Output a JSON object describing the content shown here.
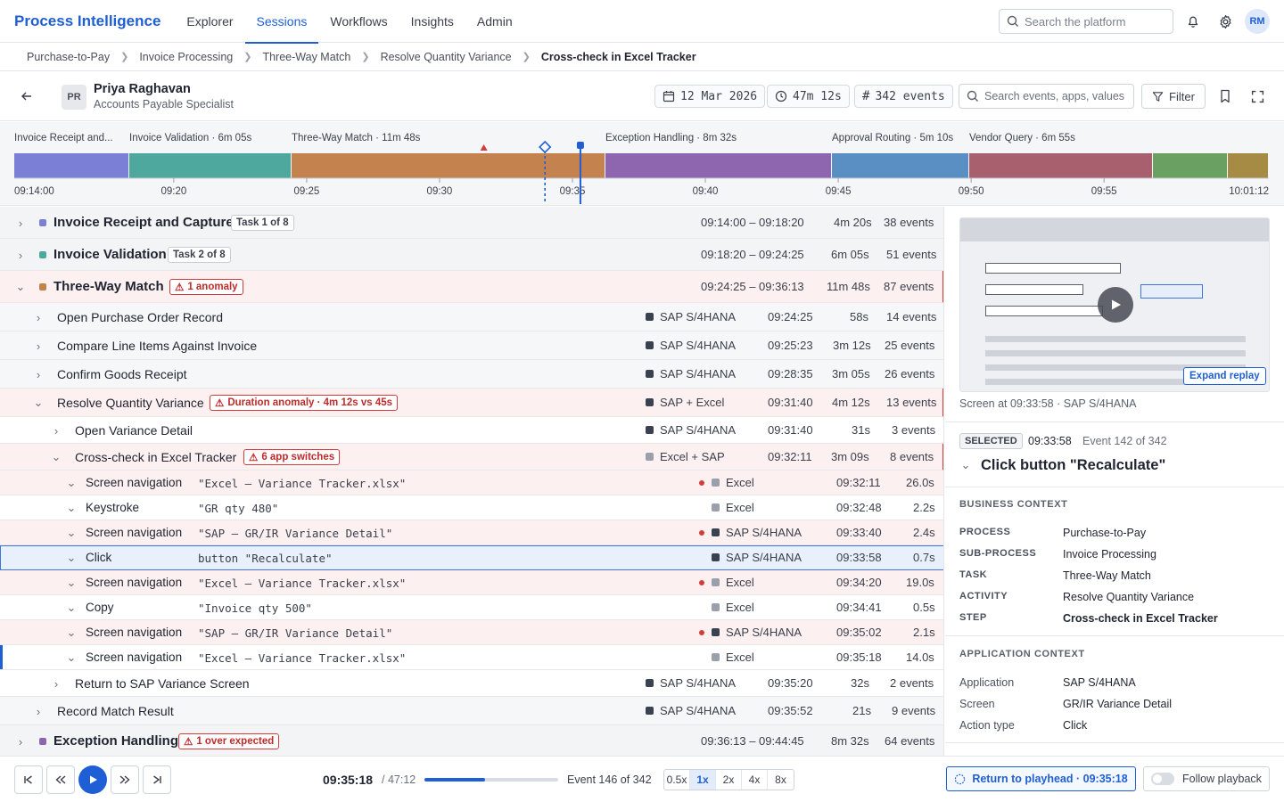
{
  "header": {
    "brand": "Process Intelligence",
    "tabs": [
      {
        "label": "Explorer"
      },
      {
        "label": "Sessions",
        "active": true
      },
      {
        "label": "Workflows"
      },
      {
        "label": "Insights"
      },
      {
        "label": "Admin"
      }
    ],
    "search_placeholder": "Search the platform",
    "avatar_initials": "RM",
    "icons": [
      "search-icon",
      "bell-icon",
      "gear-icon"
    ]
  },
  "breadcrumb": [
    "Purchase-to-Pay",
    "Invoice Processing",
    "Three-Way Match",
    "Resolve Quantity Variance",
    "Cross-check in Excel Tracker"
  ],
  "session": {
    "user_initials": "PR",
    "user_name": "Priya Raghavan",
    "user_role": "Accounts Payable Specialist",
    "date": "12 Mar 2026",
    "duration": "47m 12s",
    "events": "342 events",
    "search_placeholder": "Search events, apps, values",
    "filter_label": "Filter"
  },
  "timeline": {
    "start": "09:14:00",
    "end": "10:01:12",
    "ticks": [
      "09:20",
      "09:25",
      "09:30",
      "09:35",
      "09:40",
      "09:45",
      "09:50",
      "09:55"
    ],
    "segments": [
      {
        "label": "Invoice Receipt and...",
        "color": "#7b7fd6"
      },
      {
        "label": "Invoice Validation · 6m 05s",
        "color": "#4ea89e"
      },
      {
        "label": "Three-Way Match · 11m 48s",
        "color": "#c4824f"
      },
      {
        "label": "Exception Handling · 8m 32s",
        "color": "#8e66b0"
      },
      {
        "label": "Approval Routing · 5m 10s",
        "color": "#5a8fc4"
      },
      {
        "label": "Vendor Query · 6m 55s",
        "color": "#a85f6e"
      },
      {
        "label": "",
        "color": "#6aa062"
      },
      {
        "label": "",
        "color": "#a68b45"
      }
    ],
    "playhead": "09:35:18",
    "selected_marker": "09:33:58",
    "anomaly_marker": "09:31:40"
  },
  "tasks": [
    {
      "name": "Invoice Receipt and Capture",
      "badge": "Task 1 of 8",
      "range": "09:14:00 – 09:18:20",
      "dur": "4m 20s",
      "events": "38 events",
      "color": "#7b7fd6"
    },
    {
      "name": "Invoice Validation",
      "badge": "Task 2 of 8",
      "range": "09:18:20 – 09:24:25",
      "dur": "6m 05s",
      "events": "51 events",
      "color": "#4ea89e"
    },
    {
      "name": "Three-Way Match",
      "anomaly": "1 anomaly",
      "range": "09:24:25 – 09:36:13",
      "dur": "11m 48s",
      "events": "87 events",
      "color": "#c4824f"
    },
    {
      "name": "Exception Handling",
      "anomaly": "1 over expected",
      "range": "09:36:13 – 09:44:45",
      "dur": "8m 32s",
      "events": "64 events",
      "color": "#8e66b0"
    }
  ],
  "activities": [
    {
      "name": "Open Purchase Order Record",
      "app": "SAP S/4HANA",
      "time": "09:24:25",
      "dur": "58s",
      "events": "14 events"
    },
    {
      "name": "Compare Line Items Against Invoice",
      "app": "SAP S/4HANA",
      "time": "09:25:23",
      "dur": "3m 12s",
      "events": "25 events"
    },
    {
      "name": "Confirm Goods Receipt",
      "app": "SAP S/4HANA",
      "time": "09:28:35",
      "dur": "3m 05s",
      "events": "26 events"
    },
    {
      "name": "Resolve Quantity Variance",
      "anomaly": "Duration anomaly · 4m 12s vs 45s",
      "app": "SAP + Excel",
      "time": "09:31:40",
      "dur": "4m 12s",
      "events": "13 events"
    },
    {
      "name": "Record Match Result",
      "app": "SAP S/4HANA",
      "time": "09:35:52",
      "dur": "21s",
      "events": "9 events"
    }
  ],
  "steps": [
    {
      "name": "Open Variance Detail",
      "app": "SAP S/4HANA",
      "time": "09:31:40",
      "dur": "31s",
      "events": "3 events"
    },
    {
      "name": "Cross-check in Excel Tracker",
      "anomaly": "6 app switches",
      "app": "Excel + SAP",
      "time": "09:32:11",
      "dur": "3m 09s",
      "events": "8 events"
    },
    {
      "name": "Return to SAP Variance Screen",
      "app": "SAP S/4HANA",
      "time": "09:35:20",
      "dur": "32s",
      "events": "2 events"
    }
  ],
  "events": [
    {
      "type": "Screen navigation",
      "value": "\"Excel — Variance Tracker.xlsx\"",
      "app": "Excel",
      "time": "09:32:11",
      "dur": "26.0s",
      "switch": true
    },
    {
      "type": "Keystroke",
      "value": "\"GR qty 480\"",
      "app": "Excel",
      "time": "09:32:48",
      "dur": "2.2s"
    },
    {
      "type": "Screen navigation",
      "value": "\"SAP — GR/IR Variance Detail\"",
      "app": "SAP S/4HANA",
      "time": "09:33:40",
      "dur": "2.4s",
      "switch": true
    },
    {
      "type": "Click",
      "value": "button \"Recalculate\"",
      "app": "SAP S/4HANA",
      "time": "09:33:58",
      "dur": "0.7s",
      "selected": true
    },
    {
      "type": "Screen navigation",
      "value": "\"Excel — Variance Tracker.xlsx\"",
      "app": "Excel",
      "time": "09:34:20",
      "dur": "19.0s",
      "switch": true
    },
    {
      "type": "Copy",
      "value": "\"Invoice qty 500\"",
      "app": "Excel",
      "time": "09:34:41",
      "dur": "0.5s"
    },
    {
      "type": "Screen navigation",
      "value": "\"SAP — GR/IR Variance Detail\"",
      "app": "SAP S/4HANA",
      "time": "09:35:02",
      "dur": "2.1s",
      "switch": true
    },
    {
      "type": "Screen navigation",
      "value": "\"Excel — Variance Tracker.xlsx\"",
      "app": "Excel",
      "time": "09:35:18",
      "dur": "14.0s",
      "current": true
    }
  ],
  "detail": {
    "expand_label": "Expand replay",
    "caption": "Screen at 09:33:58 · SAP S/4HANA",
    "selected_badge": "SELECTED",
    "selected_time": "09:33:58",
    "selected_event": "Event 142 of 342",
    "title": "Click button \"Recalculate\"",
    "business_heading": "BUSINESS CONTEXT",
    "business": [
      {
        "k": "PROCESS",
        "v": "Purchase-to-Pay"
      },
      {
        "k": "SUB-PROCESS",
        "v": "Invoice Processing"
      },
      {
        "k": "TASK",
        "v": "Three-Way Match"
      },
      {
        "k": "ACTIVITY",
        "v": "Resolve Quantity Variance"
      },
      {
        "k": "STEP",
        "v": "Cross-check in Excel Tracker"
      }
    ],
    "app_heading": "APPLICATION CONTEXT",
    "application": [
      {
        "k": "Application",
        "v": "SAP S/4HANA"
      },
      {
        "k": "Screen",
        "v": "GR/IR Variance Detail"
      },
      {
        "k": "Action type",
        "v": "Click"
      }
    ]
  },
  "footer": {
    "time": "09:35:18",
    "total": "/ 47:12",
    "progress": 0.45,
    "event": "Event 146 of 342",
    "speeds": [
      "0.5x",
      "1x",
      "2x",
      "4x",
      "8x"
    ],
    "active_speed": "1x",
    "return_label": "Return to playhead · 09:35:18",
    "follow_label": "Follow playback"
  },
  "colors": {
    "accent": "#1f5fd6",
    "anomaly": "#d23c3c",
    "sap": "#3a4150",
    "excel": "#9aa0ab"
  }
}
